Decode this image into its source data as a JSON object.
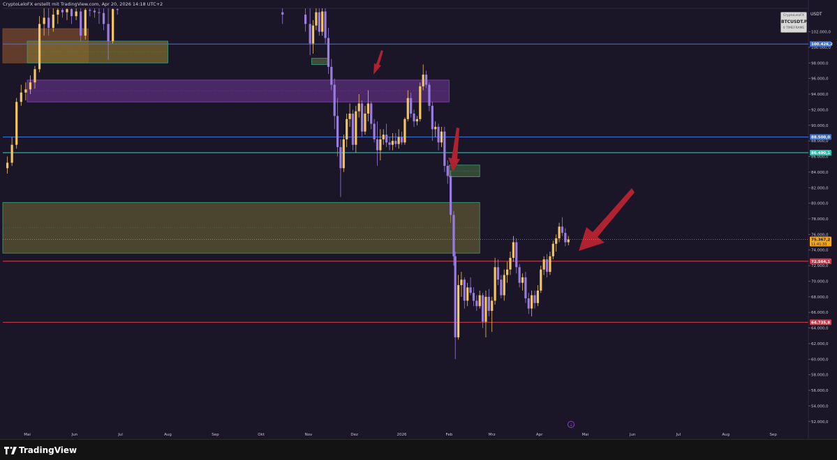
{
  "header": {
    "caption": "CryptoLeloFX erstellt mit TradingView.com, Apr 20, 2026 14:18 UTC+2"
  },
  "symbol_box": {
    "author": "CryptoLeloFX",
    "symbol": "BTCUSDT.P",
    "timeframe": "0 TIMEFRAME"
  },
  "currency": "USDT",
  "footer": {
    "brand": "TradingView"
  },
  "colors": {
    "background": "#1b1528",
    "up_candle": "#f2c462",
    "down_candle": "#9a7ce0",
    "blue_line": "#3d6fd6",
    "teal_line": "#27c2b0",
    "red_line": "#d33b4a",
    "arrow": "#b0222f",
    "current_price": "#f2a81d"
  },
  "chart_data": {
    "type": "candlestick",
    "title": "",
    "y_axis": {
      "range": [
        51000,
        105000
      ],
      "ticks": [
        52000,
        54000,
        56000,
        58000,
        60000,
        62000,
        64000,
        66000,
        68000,
        70000,
        72000,
        74000,
        76000,
        78000,
        80000,
        82000,
        84000,
        86000,
        88000,
        90000,
        92000,
        94000,
        96000,
        98000,
        100000,
        102000
      ],
      "tick_labels": [
        "52.000,0",
        "54.000,0",
        "56.000,0",
        "58.000,0",
        "60.000,0",
        "62.000,0",
        "64.000,0",
        "66.000,0",
        "68.000,0",
        "70.000,0",
        "72.000,0",
        "74.000,0",
        "76.000,0",
        "78.000,0",
        "80.000,0",
        "82.000,0",
        "84.000,0",
        "86.000,0",
        "88.000,0",
        "90.000,0",
        "92.000,0",
        "94.000,0",
        "96.000,0",
        "98.000,0",
        "100.000,0",
        "102.000,0"
      ]
    },
    "x_axis": {
      "range": [
        "2025-04-15",
        "2026-09-24"
      ],
      "ticks": [
        {
          "label": "Mai",
          "date": "2025-05-01"
        },
        {
          "label": "Jun",
          "date": "2025-06-01"
        },
        {
          "label": "Jul",
          "date": "2025-07-01"
        },
        {
          "label": "Aug",
          "date": "2025-08-01"
        },
        {
          "label": "Sep",
          "date": "2025-09-01"
        },
        {
          "label": "Okt",
          "date": "2025-10-01"
        },
        {
          "label": "Nov",
          "date": "2025-11-01"
        },
        {
          "label": "Dez",
          "date": "2025-12-01"
        },
        {
          "label": "2026",
          "date": "2026-01-01"
        },
        {
          "label": "Feb",
          "date": "2026-02-01"
        },
        {
          "label": "Mrz",
          "date": "2026-03-01"
        },
        {
          "label": "Apr",
          "date": "2026-04-01"
        },
        {
          "label": "Mai",
          "date": "2026-05-01"
        },
        {
          "label": "Jun",
          "date": "2026-06-01"
        },
        {
          "label": "Jul",
          "date": "2026-07-01"
        },
        {
          "label": "Aug",
          "date": "2026-08-01"
        },
        {
          "label": "Sep",
          "date": "2026-09-01"
        }
      ]
    },
    "horizontal_lines": [
      {
        "price": 100426.2,
        "label": "100.426,2",
        "color": "#3d6fd6"
      },
      {
        "price": 88500.0,
        "label": "88.500,0",
        "color": "#3d6fd6"
      },
      {
        "price": 86490.1,
        "label": "86.490,1",
        "color": "#27c2b0"
      },
      {
        "price": 72564.1,
        "label": "72.564,1",
        "color": "#d33b4a"
      },
      {
        "price": 64735.8,
        "label": "64.735,8",
        "color": "#d33b4a"
      }
    ],
    "current_price": {
      "value": 75367.2,
      "label": "75.367,2",
      "countdown": "11:41:33"
    },
    "zones": [
      {
        "from": "2025-04-15",
        "to": "2025-06-10",
        "low": 98000,
        "high": 102400,
        "fill": "#7a4a2e",
        "stroke": "#7a4a2e"
      },
      {
        "from": "2025-05-01",
        "to": "2025-08-01",
        "low": 98000,
        "high": 100800,
        "fill": "#7d6a30",
        "stroke": "#3aa07a"
      },
      {
        "from": "2025-05-01",
        "to": "2026-02-01",
        "low": 93000,
        "high": 95800,
        "fill": "#5a2f7a",
        "stroke": "#8a45b8"
      },
      {
        "from": "2026-02-01",
        "to": "2026-02-21",
        "low": 83400,
        "high": 84900,
        "fill": "#3b5c3a",
        "stroke": "#3aa07a"
      },
      {
        "from": "2025-04-15",
        "to": "2026-02-21",
        "low": 73600,
        "high": 80100,
        "fill": "#5c5532",
        "stroke": "#3aa07a"
      },
      {
        "from": "2025-11-03",
        "to": "2025-11-14",
        "low": 97800,
        "high": 98600,
        "fill": "#4f5a3a",
        "stroke": "#3aa07a"
      }
    ],
    "candles": [
      {
        "date": "2025-04-18",
        "o": 84500,
        "h": 86000,
        "l": 83800,
        "c": 85200
      },
      {
        "date": "2025-04-21",
        "o": 85200,
        "h": 88500,
        "l": 84800,
        "c": 87500
      },
      {
        "date": "2025-04-24",
        "o": 87500,
        "h": 93500,
        "l": 87000,
        "c": 93000
      },
      {
        "date": "2025-04-27",
        "o": 93000,
        "h": 95200,
        "l": 92500,
        "c": 94200
      },
      {
        "date": "2025-04-30",
        "o": 94200,
        "h": 95500,
        "l": 93200,
        "c": 94600
      },
      {
        "date": "2025-05-03",
        "o": 94600,
        "h": 96400,
        "l": 94000,
        "c": 95500
      },
      {
        "date": "2025-05-06",
        "o": 95500,
        "h": 97600,
        "l": 94700,
        "c": 97200
      },
      {
        "date": "2025-05-09",
        "o": 97200,
        "h": 104000,
        "l": 96800,
        "c": 103000
      },
      {
        "date": "2025-05-12",
        "o": 103000,
        "h": 105000,
        "l": 101500,
        "c": 103800
      },
      {
        "date": "2025-05-15",
        "o": 103800,
        "h": 105000,
        "l": 101500,
        "c": 102500
      },
      {
        "date": "2025-05-18",
        "o": 102500,
        "h": 105000,
        "l": 102000,
        "c": 104200
      },
      {
        "date": "2025-05-21",
        "o": 104200,
        "h": 105000,
        "l": 103000,
        "c": 104800
      },
      {
        "date": "2025-05-24",
        "o": 104800,
        "h": 105000,
        "l": 103800,
        "c": 104500
      },
      {
        "date": "2025-05-27",
        "o": 104500,
        "h": 105000,
        "l": 103500,
        "c": 104900
      },
      {
        "date": "2025-05-30",
        "o": 104900,
        "h": 105000,
        "l": 103000,
        "c": 104000
      },
      {
        "date": "2025-06-02",
        "o": 104000,
        "h": 105000,
        "l": 103500,
        "c": 104600
      },
      {
        "date": "2025-06-05",
        "o": 104600,
        "h": 105000,
        "l": 100800,
        "c": 101500
      },
      {
        "date": "2025-06-08",
        "o": 101500,
        "h": 105000,
        "l": 101000,
        "c": 104800
      },
      {
        "date": "2025-06-11",
        "o": 104800,
        "h": 105000,
        "l": 104000,
        "c": 104700
      },
      {
        "date": "2025-06-14",
        "o": 104700,
        "h": 105000,
        "l": 103800,
        "c": 104500
      },
      {
        "date": "2025-06-17",
        "o": 104500,
        "h": 105000,
        "l": 103000,
        "c": 104400
      },
      {
        "date": "2025-06-20",
        "o": 104400,
        "h": 105000,
        "l": 102200,
        "c": 103000
      },
      {
        "date": "2025-06-23",
        "o": 103000,
        "h": 105000,
        "l": 98400,
        "c": 100800
      },
      {
        "date": "2025-06-26",
        "o": 100800,
        "h": 105000,
        "l": 100500,
        "c": 104900
      },
      {
        "date": "2025-06-29",
        "o": 104900,
        "h": 105000,
        "l": 104200,
        "c": 104800
      },
      {
        "date": "2025-10-15",
        "o": 104500,
        "h": 105000,
        "l": 103000,
        "c": 104200
      },
      {
        "date": "2025-10-30",
        "o": 104200,
        "h": 105000,
        "l": 102000,
        "c": 103000
      },
      {
        "date": "2025-11-02",
        "o": 103000,
        "h": 105000,
        "l": 99000,
        "c": 100500
      },
      {
        "date": "2025-11-04",
        "o": 100500,
        "h": 103500,
        "l": 99200,
        "c": 102800
      },
      {
        "date": "2025-11-06",
        "o": 102800,
        "h": 105000,
        "l": 102200,
        "c": 104500
      },
      {
        "date": "2025-11-08",
        "o": 104500,
        "h": 105000,
        "l": 101500,
        "c": 102000
      },
      {
        "date": "2025-11-10",
        "o": 102000,
        "h": 105000,
        "l": 101500,
        "c": 104600
      },
      {
        "date": "2025-11-12",
        "o": 104600,
        "h": 105000,
        "l": 100500,
        "c": 101200
      },
      {
        "date": "2025-11-14",
        "o": 101200,
        "h": 102500,
        "l": 96600,
        "c": 97500
      },
      {
        "date": "2025-11-16",
        "o": 97500,
        "h": 98500,
        "l": 94500,
        "c": 95200
      },
      {
        "date": "2025-11-18",
        "o": 95200,
        "h": 96000,
        "l": 89500,
        "c": 91200
      },
      {
        "date": "2025-11-20",
        "o": 91200,
        "h": 93500,
        "l": 86000,
        "c": 87200
      },
      {
        "date": "2025-11-22",
        "o": 87200,
        "h": 88200,
        "l": 80800,
        "c": 84500
      },
      {
        "date": "2025-11-24",
        "o": 84500,
        "h": 88800,
        "l": 84000,
        "c": 88200
      },
      {
        "date": "2025-11-26",
        "o": 88200,
        "h": 91500,
        "l": 87200,
        "c": 90800
      },
      {
        "date": "2025-11-28",
        "o": 90800,
        "h": 92800,
        "l": 89800,
        "c": 91500
      },
      {
        "date": "2025-11-30",
        "o": 91500,
        "h": 92000,
        "l": 86800,
        "c": 87500
      },
      {
        "date": "2025-12-02",
        "o": 87500,
        "h": 92500,
        "l": 86500,
        "c": 91800
      },
      {
        "date": "2025-12-04",
        "o": 91800,
        "h": 94000,
        "l": 91000,
        "c": 92800
      },
      {
        "date": "2025-12-06",
        "o": 92800,
        "h": 93200,
        "l": 88500,
        "c": 89200
      },
      {
        "date": "2025-12-08",
        "o": 89200,
        "h": 92500,
        "l": 88800,
        "c": 91500
      },
      {
        "date": "2025-12-10",
        "o": 91500,
        "h": 94500,
        "l": 90500,
        "c": 92800
      },
      {
        "date": "2025-12-12",
        "o": 92800,
        "h": 93000,
        "l": 89500,
        "c": 90200
      },
      {
        "date": "2025-12-14",
        "o": 90200,
        "h": 90800,
        "l": 87800,
        "c": 88200
      },
      {
        "date": "2025-12-16",
        "o": 88200,
        "h": 90500,
        "l": 84800,
        "c": 86800
      },
      {
        "date": "2025-12-18",
        "o": 86800,
        "h": 89500,
        "l": 85500,
        "c": 88200
      },
      {
        "date": "2025-12-20",
        "o": 88200,
        "h": 89500,
        "l": 87500,
        "c": 88800
      },
      {
        "date": "2025-12-22",
        "o": 88800,
        "h": 90200,
        "l": 87200,
        "c": 87800
      },
      {
        "date": "2025-12-24",
        "o": 87800,
        "h": 88500,
        "l": 86800,
        "c": 87500
      },
      {
        "date": "2025-12-26",
        "o": 87500,
        "h": 89000,
        "l": 86800,
        "c": 88000
      },
      {
        "date": "2025-12-28",
        "o": 88000,
        "h": 89000,
        "l": 87200,
        "c": 87600
      },
      {
        "date": "2025-12-30",
        "o": 87600,
        "h": 89500,
        "l": 87000,
        "c": 88500
      },
      {
        "date": "2026-01-01",
        "o": 88500,
        "h": 89200,
        "l": 87500,
        "c": 87800
      },
      {
        "date": "2026-01-03",
        "o": 87800,
        "h": 91000,
        "l": 87500,
        "c": 90800
      },
      {
        "date": "2026-01-05",
        "o": 90800,
        "h": 94500,
        "l": 90500,
        "c": 93500
      },
      {
        "date": "2026-01-07",
        "o": 93500,
        "h": 94200,
        "l": 91000,
        "c": 91500
      },
      {
        "date": "2026-01-09",
        "o": 91500,
        "h": 92000,
        "l": 89800,
        "c": 90500
      },
      {
        "date": "2026-01-11",
        "o": 90500,
        "h": 91200,
        "l": 90000,
        "c": 90800
      },
      {
        "date": "2026-01-13",
        "o": 90800,
        "h": 95500,
        "l": 90500,
        "c": 95000
      },
      {
        "date": "2026-01-15",
        "o": 95000,
        "h": 97800,
        "l": 94500,
        "c": 96500
      },
      {
        "date": "2026-01-17",
        "o": 96500,
        "h": 97000,
        "l": 94800,
        "c": 95200
      },
      {
        "date": "2026-01-19",
        "o": 95200,
        "h": 95500,
        "l": 91800,
        "c": 92500
      },
      {
        "date": "2026-01-21",
        "o": 92500,
        "h": 93000,
        "l": 88000,
        "c": 89500
      },
      {
        "date": "2026-01-23",
        "o": 89500,
        "h": 90500,
        "l": 88500,
        "c": 89800
      },
      {
        "date": "2026-01-25",
        "o": 89800,
        "h": 90200,
        "l": 86800,
        "c": 87800
      },
      {
        "date": "2026-01-27",
        "o": 87800,
        "h": 89800,
        "l": 87200,
        "c": 89200
      },
      {
        "date": "2026-01-29",
        "o": 89200,
        "h": 89800,
        "l": 84000,
        "c": 84800
      },
      {
        "date": "2026-01-31",
        "o": 84800,
        "h": 85500,
        "l": 82500,
        "c": 83500
      },
      {
        "date": "2026-02-02",
        "o": 83500,
        "h": 84200,
        "l": 77500,
        "c": 78500
      },
      {
        "date": "2026-02-04",
        "o": 78500,
        "h": 79000,
        "l": 72000,
        "c": 73200
      },
      {
        "date": "2026-02-05",
        "o": 73200,
        "h": 73800,
        "l": 60000,
        "c": 62800
      },
      {
        "date": "2026-02-07",
        "o": 62800,
        "h": 70800,
        "l": 62500,
        "c": 69500
      },
      {
        "date": "2026-02-09",
        "o": 69500,
        "h": 71200,
        "l": 68000,
        "c": 70200
      },
      {
        "date": "2026-02-11",
        "o": 70200,
        "h": 70500,
        "l": 66500,
        "c": 67500
      },
      {
        "date": "2026-02-13",
        "o": 67500,
        "h": 69800,
        "l": 66800,
        "c": 69200
      },
      {
        "date": "2026-02-15",
        "o": 69200,
        "h": 70500,
        "l": 68200,
        "c": 68500
      },
      {
        "date": "2026-02-17",
        "o": 68500,
        "h": 69200,
        "l": 66800,
        "c": 67500
      },
      {
        "date": "2026-02-19",
        "o": 67500,
        "h": 68200,
        "l": 66200,
        "c": 66800
      },
      {
        "date": "2026-02-21",
        "o": 66800,
        "h": 68800,
        "l": 66500,
        "c": 68200
      },
      {
        "date": "2026-02-23",
        "o": 68200,
        "h": 68500,
        "l": 64000,
        "c": 64800
      },
      {
        "date": "2026-02-25",
        "o": 64800,
        "h": 68800,
        "l": 62800,
        "c": 68000
      },
      {
        "date": "2026-02-27",
        "o": 68000,
        "h": 69000,
        "l": 65500,
        "c": 66200
      },
      {
        "date": "2026-03-01",
        "o": 66200,
        "h": 68000,
        "l": 63500,
        "c": 67500
      },
      {
        "date": "2026-03-03",
        "o": 67500,
        "h": 73000,
        "l": 67000,
        "c": 71800
      },
      {
        "date": "2026-03-05",
        "o": 71800,
        "h": 72800,
        "l": 69500,
        "c": 70200
      },
      {
        "date": "2026-03-07",
        "o": 70200,
        "h": 70800,
        "l": 67800,
        "c": 68200
      },
      {
        "date": "2026-03-09",
        "o": 68200,
        "h": 71500,
        "l": 67500,
        "c": 70800
      },
      {
        "date": "2026-03-11",
        "o": 70800,
        "h": 72500,
        "l": 69800,
        "c": 71500
      },
      {
        "date": "2026-03-13",
        "o": 71500,
        "h": 73800,
        "l": 70800,
        "c": 73000
      },
      {
        "date": "2026-03-15",
        "o": 73000,
        "h": 75800,
        "l": 72500,
        "c": 75000
      },
      {
        "date": "2026-03-17",
        "o": 75000,
        "h": 75500,
        "l": 71000,
        "c": 71800
      },
      {
        "date": "2026-03-19",
        "o": 71800,
        "h": 72200,
        "l": 69200,
        "c": 69800
      },
      {
        "date": "2026-03-21",
        "o": 69800,
        "h": 71000,
        "l": 68800,
        "c": 70500
      },
      {
        "date": "2026-03-23",
        "o": 70500,
        "h": 71200,
        "l": 67200,
        "c": 67800
      },
      {
        "date": "2026-03-25",
        "o": 67800,
        "h": 68500,
        "l": 65800,
        "c": 66500
      },
      {
        "date": "2026-03-27",
        "o": 66500,
        "h": 68800,
        "l": 65500,
        "c": 68200
      },
      {
        "date": "2026-03-29",
        "o": 68200,
        "h": 68800,
        "l": 66500,
        "c": 67200
      },
      {
        "date": "2026-03-31",
        "o": 67200,
        "h": 69500,
        "l": 66800,
        "c": 68800
      },
      {
        "date": "2026-04-02",
        "o": 68800,
        "h": 72000,
        "l": 68500,
        "c": 71500
      },
      {
        "date": "2026-04-04",
        "o": 71500,
        "h": 73200,
        "l": 70800,
        "c": 72800
      },
      {
        "date": "2026-04-06",
        "o": 72800,
        "h": 73500,
        "l": 70500,
        "c": 71200
      },
      {
        "date": "2026-04-08",
        "o": 71200,
        "h": 73800,
        "l": 70800,
        "c": 73200
      },
      {
        "date": "2026-04-10",
        "o": 73200,
        "h": 75200,
        "l": 72800,
        "c": 74800
      },
      {
        "date": "2026-04-12",
        "o": 74800,
        "h": 76000,
        "l": 73800,
        "c": 75500
      },
      {
        "date": "2026-04-14",
        "o": 75500,
        "h": 77500,
        "l": 75000,
        "c": 77000
      },
      {
        "date": "2026-04-16",
        "o": 77000,
        "h": 78200,
        "l": 75800,
        "c": 76200
      },
      {
        "date": "2026-04-18",
        "o": 76200,
        "h": 76800,
        "l": 74500,
        "c": 75000
      },
      {
        "date": "2026-04-20",
        "o": 75000,
        "h": 75800,
        "l": 74600,
        "c": 75367
      }
    ]
  }
}
